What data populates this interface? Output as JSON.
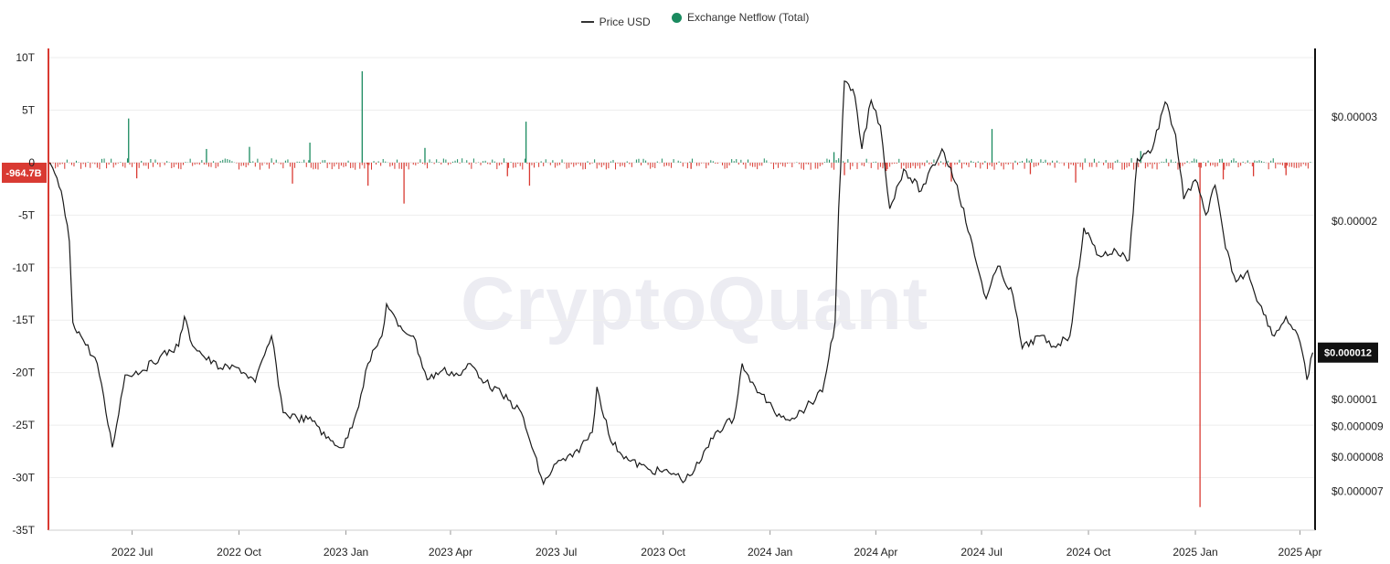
{
  "legend": {
    "price_label": "Price USD",
    "netflow_label": "Exchange Netflow (Total)"
  },
  "watermark": "CryptoQuant",
  "colors": {
    "price_line": "#1a1a1a",
    "netflow_positive": "#1a8a5f",
    "netflow_negative": "#d93a32",
    "left_axis": "#d93a32",
    "right_axis": "#111111",
    "grid": "#eeeeee"
  },
  "chart_data": {
    "type": "line",
    "x_tick_labels": [
      "2022 Jul",
      "2022 Oct",
      "2023 Jan",
      "2023 Apr",
      "2023 Jul",
      "2023 Oct",
      "2024 Jan",
      "2024 Apr",
      "2024 Jul",
      "2024 Oct",
      "2025 Jan",
      "2025 Apr"
    ],
    "x_tick_dates": [
      "2022-07-01",
      "2022-10-01",
      "2023-01-01",
      "2023-04-01",
      "2023-07-01",
      "2023-10-01",
      "2024-01-01",
      "2024-04-01",
      "2024-07-01",
      "2024-10-01",
      "2025-01-01",
      "2025-04-01"
    ],
    "xlim": [
      "2022-04-20",
      "2025-04-14"
    ],
    "left_axis": {
      "series": "Exchange Netflow (Total)",
      "ylim": [
        -35,
        10
      ],
      "tick_values": [
        10,
        5,
        0,
        -5,
        -10,
        -15,
        -20,
        -25,
        -30,
        -35
      ],
      "tick_labels": [
        "10T",
        "5T",
        "0",
        "-5T",
        "-10T",
        "-15T",
        "-20T",
        "-25T",
        "-30T",
        "-35T"
      ],
      "current_label": "-964.7B",
      "current_value": -0.9647
    },
    "right_axis": {
      "series": "Price USD",
      "scale": "log",
      "tick_values": [
        3e-05,
        2e-05,
        1e-05,
        9e-06,
        8e-06,
        7e-06
      ],
      "tick_labels": [
        "$0.00003",
        "$0.00002",
        "$0.00001",
        "$0.000009",
        "$0.000008",
        "$0.000007"
      ],
      "current_label": "$0.000012",
      "current_value": 1.2e-05
    },
    "series": [
      {
        "name": "Price USD",
        "axis": "right",
        "points": [
          [
            "2022-04-20",
            2.52e-05
          ],
          [
            "2022-05-01",
            2.25e-05
          ],
          [
            "2022-05-08",
            1.85e-05
          ],
          [
            "2022-05-11",
            1.35e-05
          ],
          [
            "2022-05-18",
            1.28e-05
          ],
          [
            "2022-06-01",
            1.15e-05
          ],
          [
            "2022-06-14",
            8.3e-06
          ],
          [
            "2022-06-25",
            1.1e-05
          ],
          [
            "2022-07-10",
            1.12e-05
          ],
          [
            "2022-07-25",
            1.18e-05
          ],
          [
            "2022-08-10",
            1.23e-05
          ],
          [
            "2022-08-15",
            1.38e-05
          ],
          [
            "2022-08-20",
            1.26e-05
          ],
          [
            "2022-09-01",
            1.18e-05
          ],
          [
            "2022-09-15",
            1.13e-05
          ],
          [
            "2022-10-01",
            1.13e-05
          ],
          [
            "2022-10-15",
            1.07e-05
          ],
          [
            "2022-10-29",
            1.28e-05
          ],
          [
            "2022-11-08",
            9.5e-06
          ],
          [
            "2022-11-20",
            9.3e-06
          ],
          [
            "2022-12-05",
            9.2e-06
          ],
          [
            "2022-12-15",
            8.6e-06
          ],
          [
            "2022-12-30",
            8.3e-06
          ],
          [
            "2023-01-10",
            9.5e-06
          ],
          [
            "2023-01-20",
            1.15e-05
          ],
          [
            "2023-02-01",
            1.28e-05
          ],
          [
            "2023-02-05",
            1.45e-05
          ],
          [
            "2023-02-15",
            1.33e-05
          ],
          [
            "2023-02-28",
            1.28e-05
          ],
          [
            "2023-03-12",
            1.08e-05
          ],
          [
            "2023-03-25",
            1.12e-05
          ],
          [
            "2023-04-10",
            1.1e-05
          ],
          [
            "2023-04-18",
            1.15e-05
          ],
          [
            "2023-05-01",
            1.07e-05
          ],
          [
            "2023-05-15",
            1.02e-05
          ],
          [
            "2023-06-01",
            9.5e-06
          ],
          [
            "2023-06-10",
            8.3e-06
          ],
          [
            "2023-06-20",
            7.2e-06
          ],
          [
            "2023-07-01",
            7.8e-06
          ],
          [
            "2023-07-15",
            8e-06
          ],
          [
            "2023-08-01",
            8.8e-06
          ],
          [
            "2023-08-05",
            1.05e-05
          ],
          [
            "2023-08-17",
            8.5e-06
          ],
          [
            "2023-09-01",
            7.9e-06
          ],
          [
            "2023-09-20",
            7.6e-06
          ],
          [
            "2023-10-10",
            7.5e-06
          ],
          [
            "2023-10-20",
            7.3e-06
          ],
          [
            "2023-11-01",
            7.8e-06
          ],
          [
            "2023-11-15",
            8.8e-06
          ],
          [
            "2023-12-01",
            9.3e-06
          ],
          [
            "2023-12-08",
            1.15e-05
          ],
          [
            "2023-12-15",
            1.07e-05
          ],
          [
            "2023-12-25",
            1.02e-05
          ],
          [
            "2024-01-05",
            9.5e-06
          ],
          [
            "2024-01-20",
            9.3e-06
          ],
          [
            "2024-02-01",
            9.7e-06
          ],
          [
            "2024-02-15",
            1.03e-05
          ],
          [
            "2024-02-26",
            1.35e-05
          ],
          [
            "2024-02-29",
            2.1e-05
          ],
          [
            "2024-03-05",
            3.45e-05
          ],
          [
            "2024-03-14",
            3.25e-05
          ],
          [
            "2024-03-20",
            2.65e-05
          ],
          [
            "2024-03-28",
            3.2e-05
          ],
          [
            "2024-04-05",
            2.9e-05
          ],
          [
            "2024-04-13",
            2.1e-05
          ],
          [
            "2024-04-25",
            2.45e-05
          ],
          [
            "2024-05-10",
            2.25e-05
          ],
          [
            "2024-05-28",
            2.65e-05
          ],
          [
            "2024-06-10",
            2.3e-05
          ],
          [
            "2024-06-25",
            1.75e-05
          ],
          [
            "2024-07-05",
            1.48e-05
          ],
          [
            "2024-07-15",
            1.68e-05
          ],
          [
            "2024-07-28",
            1.5e-05
          ],
          [
            "2024-08-05",
            1.22e-05
          ],
          [
            "2024-08-20",
            1.28e-05
          ],
          [
            "2024-09-01",
            1.23e-05
          ],
          [
            "2024-09-15",
            1.28e-05
          ],
          [
            "2024-09-27",
            1.95e-05
          ],
          [
            "2024-10-10",
            1.75e-05
          ],
          [
            "2024-10-25",
            1.78e-05
          ],
          [
            "2024-11-05",
            1.72e-05
          ],
          [
            "2024-11-12",
            2.55e-05
          ],
          [
            "2024-11-25",
            2.65e-05
          ],
          [
            "2024-12-06",
            3.18e-05
          ],
          [
            "2024-12-15",
            2.8e-05
          ],
          [
            "2024-12-22",
            2.18e-05
          ],
          [
            "2025-01-01",
            2.35e-05
          ],
          [
            "2025-01-10",
            2.05e-05
          ],
          [
            "2025-01-18",
            2.3e-05
          ],
          [
            "2025-01-27",
            1.8e-05
          ],
          [
            "2025-02-05",
            1.58e-05
          ],
          [
            "2025-02-15",
            1.65e-05
          ],
          [
            "2025-02-25",
            1.45e-05
          ],
          [
            "2025-03-10",
            1.28e-05
          ],
          [
            "2025-03-20",
            1.38e-05
          ],
          [
            "2025-04-01",
            1.25e-05
          ],
          [
            "2025-04-07",
            1.08e-05
          ],
          [
            "2025-04-12",
            1.2e-05
          ]
        ]
      },
      {
        "name": "Exchange Netflow (Total)",
        "axis": "left",
        "notable_points": [
          [
            "2022-06-28",
            4.2
          ],
          [
            "2022-07-05",
            -1.5
          ],
          [
            "2022-09-03",
            1.3
          ],
          [
            "2022-10-10",
            1.5
          ],
          [
            "2022-11-16",
            -2.0
          ],
          [
            "2022-12-01",
            1.9
          ],
          [
            "2023-01-15",
            8.7
          ],
          [
            "2023-01-20",
            -2.2
          ],
          [
            "2023-02-20",
            -3.9
          ],
          [
            "2023-03-10",
            1.4
          ],
          [
            "2023-05-20",
            -1.3
          ],
          [
            "2023-06-05",
            3.9
          ],
          [
            "2023-06-08",
            -2.2
          ],
          [
            "2023-10-25",
            -0.6
          ],
          [
            "2024-02-25",
            1.0
          ],
          [
            "2024-03-05",
            -1.2
          ],
          [
            "2024-04-10",
            -0.8
          ],
          [
            "2024-06-05",
            -1.8
          ],
          [
            "2024-07-10",
            3.2
          ],
          [
            "2024-08-12",
            -1.1
          ],
          [
            "2024-09-20",
            -1.9
          ],
          [
            "2024-11-15",
            1.1
          ],
          [
            "2025-01-05",
            -32.8
          ],
          [
            "2025-01-25",
            -1.6
          ],
          [
            "2025-02-20",
            -1.3
          ],
          [
            "2025-03-20",
            -1.2
          ]
        ]
      }
    ],
    "grid": true,
    "legend_position": "top-center"
  }
}
